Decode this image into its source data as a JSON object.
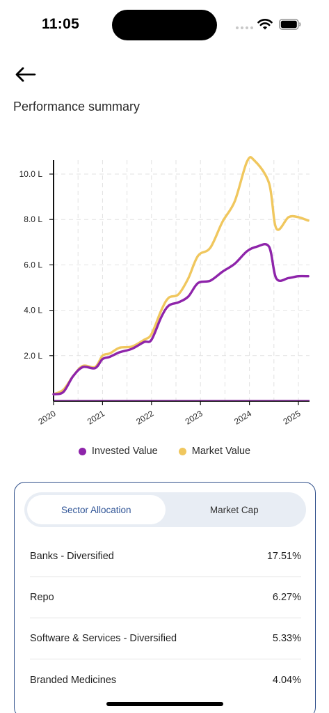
{
  "status_bar": {
    "time": "11:05"
  },
  "header": {
    "title": "Performance summary"
  },
  "chart_data": {
    "type": "line",
    "x_tick_labels": [
      "2020",
      "2021",
      "2022",
      "2023",
      "2024",
      "2025"
    ],
    "y_tick_labels": [
      "2.0 L",
      "4.0 L",
      "6.0 L",
      "8.0 L",
      "10.0 L"
    ],
    "y_tick_values": [
      2,
      4,
      6,
      8,
      10
    ],
    "xlim": [
      2020,
      2025.2
    ],
    "ylim": [
      0,
      10.8
    ],
    "grid": true,
    "legend_position": "bottom",
    "series": [
      {
        "name": "Invested Value",
        "color": "#8e24aa",
        "points": [
          [
            2020.0,
            0.3
          ],
          [
            2020.2,
            0.4
          ],
          [
            2020.4,
            1.1
          ],
          [
            2020.6,
            1.5
          ],
          [
            2020.85,
            1.45
          ],
          [
            2021.0,
            1.85
          ],
          [
            2021.15,
            1.95
          ],
          [
            2021.35,
            2.15
          ],
          [
            2021.6,
            2.3
          ],
          [
            2021.85,
            2.6
          ],
          [
            2022.0,
            2.7
          ],
          [
            2022.2,
            3.7
          ],
          [
            2022.35,
            4.2
          ],
          [
            2022.55,
            4.35
          ],
          [
            2022.75,
            4.6
          ],
          [
            2022.95,
            5.2
          ],
          [
            2023.2,
            5.3
          ],
          [
            2023.45,
            5.7
          ],
          [
            2023.7,
            6.05
          ],
          [
            2023.95,
            6.6
          ],
          [
            2024.15,
            6.8
          ],
          [
            2024.4,
            6.8
          ],
          [
            2024.55,
            5.4
          ],
          [
            2024.8,
            5.42
          ],
          [
            2025.0,
            5.5
          ],
          [
            2025.2,
            5.5
          ]
        ]
      },
      {
        "name": "Market Value",
        "color": "#f0c75e",
        "points": [
          [
            2020.0,
            0.3
          ],
          [
            2020.2,
            0.5
          ],
          [
            2020.4,
            1.1
          ],
          [
            2020.6,
            1.55
          ],
          [
            2020.85,
            1.5
          ],
          [
            2021.0,
            2.0
          ],
          [
            2021.15,
            2.1
          ],
          [
            2021.35,
            2.35
          ],
          [
            2021.6,
            2.4
          ],
          [
            2021.85,
            2.7
          ],
          [
            2022.0,
            2.95
          ],
          [
            2022.2,
            4.0
          ],
          [
            2022.35,
            4.55
          ],
          [
            2022.55,
            4.7
          ],
          [
            2022.75,
            5.4
          ],
          [
            2022.95,
            6.4
          ],
          [
            2023.2,
            6.75
          ],
          [
            2023.45,
            7.9
          ],
          [
            2023.7,
            8.8
          ],
          [
            2023.95,
            10.55
          ],
          [
            2024.1,
            10.6
          ],
          [
            2024.4,
            9.6
          ],
          [
            2024.55,
            7.6
          ],
          [
            2024.8,
            8.1
          ],
          [
            2025.0,
            8.1
          ],
          [
            2025.2,
            7.95
          ]
        ]
      }
    ]
  },
  "legend": {
    "invested": "Invested Value",
    "market": "Market Value"
  },
  "allocation": {
    "tabs": [
      "Sector Allocation",
      "Market Cap"
    ],
    "active_tab": 0,
    "rows": [
      {
        "label": "Banks - Diversified",
        "value": "17.51%"
      },
      {
        "label": "Repo",
        "value": "6.27%"
      },
      {
        "label": "Software & Services - Diversified",
        "value": "5.33%"
      },
      {
        "label": "Branded Medicines",
        "value": "4.04%"
      }
    ]
  },
  "colors": {
    "invested": "#8e24aa",
    "market": "#f0c75e",
    "accent": "#2f5496",
    "card_border": "#2f4f8a"
  }
}
